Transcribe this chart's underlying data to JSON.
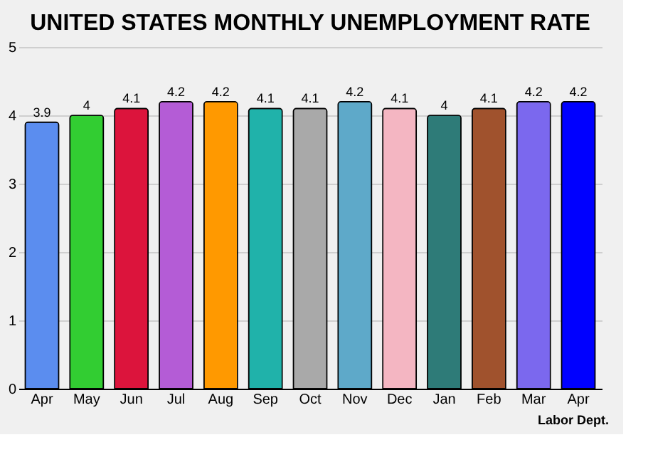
{
  "chart_data": {
    "type": "bar",
    "title": "UNITED STATES MONTHLY UNEMPLOYMENT RATE",
    "categories": [
      "Apr",
      "May",
      "Jun",
      "Jul",
      "Aug",
      "Sep",
      "Oct",
      "Nov",
      "Dec",
      "Jan",
      "Feb",
      "Mar",
      "Apr"
    ],
    "values": [
      3.9,
      4,
      4.1,
      4.2,
      4.2,
      4.1,
      4.1,
      4.2,
      4.1,
      4,
      4.1,
      4.2,
      4.2
    ],
    "colors": [
      "#5b8def",
      "#32cd32",
      "#dc143c",
      "#b45cd6",
      "#ff9900",
      "#20b2aa",
      "#a9a9a9",
      "#5ea9c9",
      "#f4b6c2",
      "#2e7b78",
      "#a0522d",
      "#7b68ee",
      "#0000ff"
    ],
    "ylim": [
      0,
      5
    ],
    "yticks": [
      0,
      1,
      2,
      3,
      4,
      5
    ],
    "grid": "y",
    "data_labels": true,
    "annotations": [
      "Labor Dept."
    ]
  }
}
